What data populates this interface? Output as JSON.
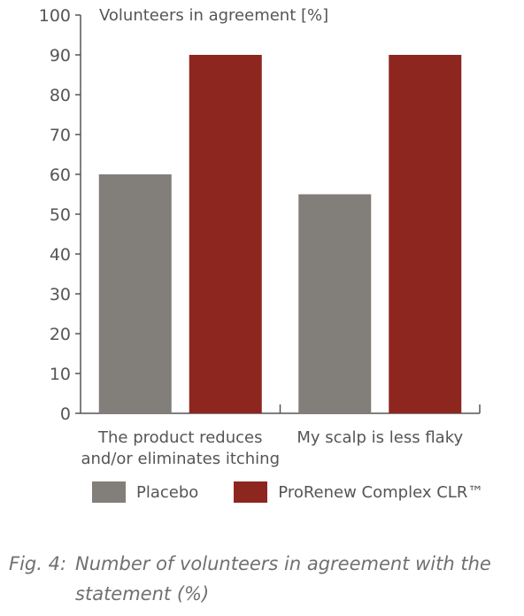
{
  "chart_data": {
    "type": "bar",
    "ylabel": "Volunteers in agreement [%]",
    "ylim": [
      0,
      100
    ],
    "yticks": [
      0,
      10,
      20,
      30,
      40,
      50,
      60,
      70,
      80,
      90,
      100
    ],
    "categories": [
      [
        "The product reduces",
        "and/or eliminates itching"
      ],
      [
        "My scalp is less flaky"
      ]
    ],
    "series": [
      {
        "name": "Placebo",
        "color": "#827e79",
        "values": [
          60,
          55
        ]
      },
      {
        "name": "ProRenew Complex CLR™",
        "color": "#8e2620",
        "values": [
          90,
          90
        ]
      }
    ],
    "legend_position": "bottom"
  },
  "caption": {
    "prefix": "Fig. 4:",
    "text": "Number of volunteers in agreement with the statement (%)"
  }
}
